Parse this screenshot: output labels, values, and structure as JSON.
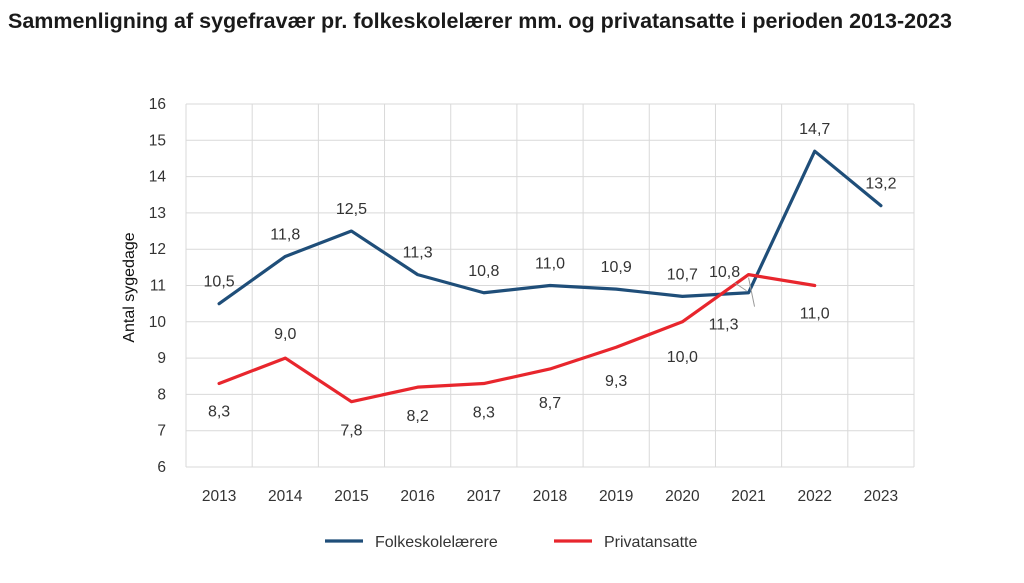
{
  "title": "Sammenligning af sygefravær pr. folkeskolelærer mm. og privatansatte i perioden 2013-2023",
  "chart_data": {
    "type": "line",
    "title": "Sammenligning af sygefravær pr. folkeskolelærer mm. og privatansatte i perioden 2013-2023",
    "xlabel": "",
    "ylabel": "Antal sygedage",
    "categories": [
      "2013",
      "2014",
      "2015",
      "2016",
      "2017",
      "2018",
      "2019",
      "2020",
      "2021",
      "2022",
      "2023"
    ],
    "ylim": [
      6,
      16
    ],
    "yticks": [
      "6",
      "7",
      "8",
      "9",
      "10",
      "11",
      "12",
      "13",
      "14",
      "15",
      "16"
    ],
    "grid": true,
    "legend_position": "bottom",
    "series": [
      {
        "name": "Folkeskolelærere",
        "color": "#1f4e79",
        "values": [
          10.5,
          11.8,
          12.5,
          11.3,
          10.8,
          11.0,
          10.9,
          10.7,
          10.8,
          14.7,
          13.2
        ],
        "labels": [
          "10,5",
          "11,8",
          "12,5",
          "11,3",
          "10,8",
          "11,0",
          "10,9",
          "10,7",
          "10,8",
          "14,7",
          "13,2"
        ]
      },
      {
        "name": "Privatansatte",
        "color": "#e8262d",
        "values": [
          8.3,
          9.0,
          7.8,
          8.2,
          8.3,
          8.7,
          9.3,
          10.0,
          11.3,
          11.0,
          null
        ],
        "labels": [
          "8,3",
          "9,0",
          "7,8",
          "8,2",
          "8,3",
          "8,7",
          "9,3",
          "10,0",
          "11,3",
          "11,0",
          null
        ]
      }
    ]
  }
}
